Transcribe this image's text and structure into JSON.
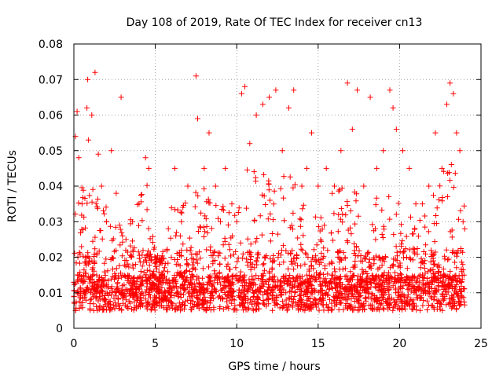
{
  "chart_data": {
    "type": "scatter",
    "title": "Day 108 of 2019, Rate Of TEC Index for receiver cn13",
    "xlabel": "GPS time / hours",
    "ylabel": "ROTI / TECUs",
    "xlim": [
      0,
      25
    ],
    "ylim": [
      0,
      0.08
    ],
    "x_ticks": [
      0,
      5,
      10,
      15,
      20,
      25
    ],
    "x_tick_labels": [
      "0",
      "5",
      "10",
      "15",
      "20",
      "25"
    ],
    "y_ticks": [
      0,
      0.01,
      0.02,
      0.03,
      0.04,
      0.05,
      0.06,
      0.07,
      0.08
    ],
    "y_tick_labels": [
      "0",
      "0.01",
      "0.02",
      "0.03",
      "0.04",
      "0.05",
      "0.06",
      "0.07",
      "0.08"
    ],
    "grid": true,
    "marker": "+",
    "series_color": "#ff0000",
    "series": [
      {
        "name": "ROTI",
        "points": [
          [
            0.0,
            0.009
          ],
          [
            0.1,
            0.054
          ],
          [
            0.2,
            0.061
          ],
          [
            0.3,
            0.048
          ],
          [
            0.5,
            0.035
          ],
          [
            0.7,
            0.02
          ],
          [
            0.8,
            0.062
          ],
          [
            0.85,
            0.07
          ],
          [
            0.9,
            0.053
          ],
          [
            1.1,
            0.06
          ],
          [
            1.3,
            0.072
          ],
          [
            1.5,
            0.049
          ],
          [
            1.7,
            0.04
          ],
          [
            2.0,
            0.03
          ],
          [
            2.3,
            0.05
          ],
          [
            2.6,
            0.038
          ],
          [
            2.9,
            0.065
          ],
          [
            3.2,
            0.025
          ],
          [
            3.6,
            0.03
          ],
          [
            4.0,
            0.035
          ],
          [
            4.4,
            0.048
          ],
          [
            4.6,
            0.045
          ],
          [
            5.0,
            0.02
          ],
          [
            5.4,
            0.015
          ],
          [
            5.8,
            0.028
          ],
          [
            6.2,
            0.045
          ],
          [
            6.6,
            0.03
          ],
          [
            7.0,
            0.04
          ],
          [
            7.5,
            0.071
          ],
          [
            7.6,
            0.059
          ],
          [
            8.0,
            0.045
          ],
          [
            8.3,
            0.055
          ],
          [
            8.7,
            0.04
          ],
          [
            9.0,
            0.03
          ],
          [
            9.3,
            0.045
          ],
          [
            9.7,
            0.035
          ],
          [
            10.0,
            0.03
          ],
          [
            10.3,
            0.066
          ],
          [
            10.5,
            0.068
          ],
          [
            10.8,
            0.052
          ],
          [
            11.2,
            0.06
          ],
          [
            11.6,
            0.063
          ],
          [
            12.0,
            0.065
          ],
          [
            12.4,
            0.067
          ],
          [
            12.8,
            0.05
          ],
          [
            13.2,
            0.062
          ],
          [
            13.5,
            0.067
          ],
          [
            14.0,
            0.04
          ],
          [
            14.3,
            0.045
          ],
          [
            14.6,
            0.055
          ],
          [
            15.0,
            0.04
          ],
          [
            15.5,
            0.045
          ],
          [
            16.0,
            0.04
          ],
          [
            16.4,
            0.05
          ],
          [
            16.8,
            0.069
          ],
          [
            17.1,
            0.056
          ],
          [
            17.4,
            0.067
          ],
          [
            17.8,
            0.04
          ],
          [
            18.2,
            0.065
          ],
          [
            18.6,
            0.045
          ],
          [
            19.0,
            0.05
          ],
          [
            19.4,
            0.067
          ],
          [
            19.6,
            0.062
          ],
          [
            19.8,
            0.056
          ],
          [
            20.2,
            0.05
          ],
          [
            20.6,
            0.045
          ],
          [
            21.0,
            0.035
          ],
          [
            21.4,
            0.035
          ],
          [
            21.8,
            0.04
          ],
          [
            22.2,
            0.055
          ],
          [
            22.6,
            0.045
          ],
          [
            22.9,
            0.063
          ],
          [
            23.1,
            0.069
          ],
          [
            23.3,
            0.066
          ],
          [
            23.5,
            0.055
          ],
          [
            23.7,
            0.05
          ],
          [
            23.9,
            0.03
          ]
        ]
      }
    ]
  }
}
